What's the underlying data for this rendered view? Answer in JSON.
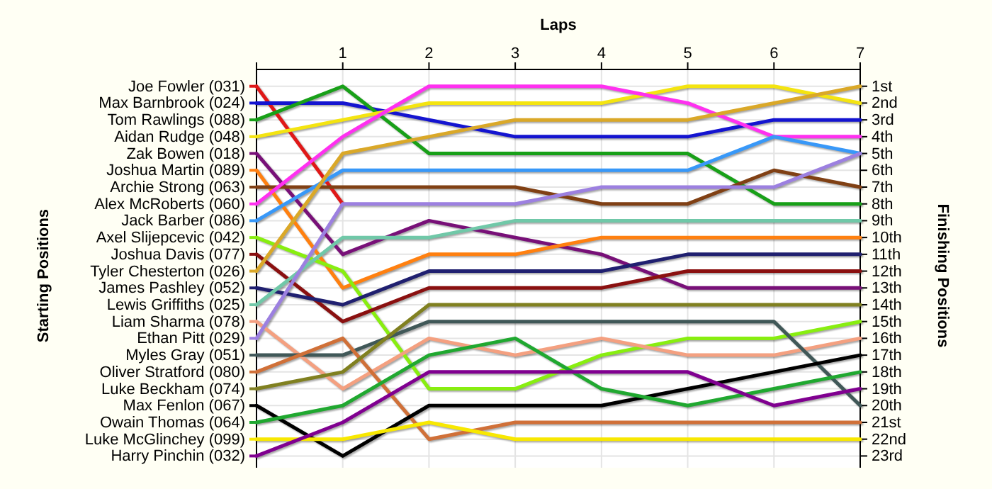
{
  "chart_data": {
    "type": "line",
    "xlabel": "Laps",
    "ylabel": "Finishing Positions",
    "annotations": [
      "Starting Positions"
    ],
    "legend": "left",
    "x": [
      0,
      1,
      2,
      3,
      4,
      5,
      6,
      7
    ],
    "xlim": [
      0,
      7
    ],
    "xticks": [
      {
        "value": 0,
        "label": null
      },
      1,
      2,
      3,
      4,
      5,
      6,
      7
    ],
    "ylim": [
      23.7,
      0
    ],
    "yticks": [
      {
        "value": 1,
        "label": "1st"
      },
      {
        "value": 2,
        "label": "2nd"
      },
      {
        "value": 3,
        "label": "3rd"
      },
      {
        "value": 4,
        "label": "4th"
      },
      {
        "value": 5,
        "label": "5th"
      },
      {
        "value": 6,
        "label": "6th"
      },
      {
        "value": 7,
        "label": "7th"
      },
      {
        "value": 8,
        "label": "8th"
      },
      {
        "value": 9,
        "label": "9th"
      },
      {
        "value": 10,
        "label": "10th"
      },
      {
        "value": 11,
        "label": "11th"
      },
      {
        "value": 12,
        "label": "12th"
      },
      {
        "value": 13,
        "label": "13th"
      },
      {
        "value": 14,
        "label": "14th"
      },
      {
        "value": 15,
        "label": "15th"
      },
      {
        "value": 16,
        "label": "16th"
      },
      {
        "value": 17,
        "label": "17th"
      },
      {
        "value": 18,
        "label": "18th"
      },
      {
        "value": 19,
        "label": "19th"
      },
      {
        "value": 20,
        "label": "20th"
      },
      {
        "value": 21,
        "label": "21st"
      },
      {
        "value": 22,
        "label": "22nd"
      },
      {
        "value": 23,
        "label": "23rd"
      }
    ],
    "grid": true,
    "marker": "none",
    "line_style": "solid",
    "series": [
      {
        "name": "Joe Fowler (031)",
        "color": "#e01818",
        "values": [
          1,
          8,
          null,
          null,
          null,
          null,
          null,
          null
        ]
      },
      {
        "name": "Max Barnbrook (024)",
        "color": "#1414d0",
        "values": [
          2,
          2,
          3,
          4,
          4,
          4,
          3,
          3
        ]
      },
      {
        "name": "Tom Rawlings (088)",
        "color": "#18a018",
        "values": [
          3,
          1,
          5,
          5,
          5,
          5,
          8,
          8
        ]
      },
      {
        "name": "Aidan Rudge (048)",
        "color": "#f4e410",
        "values": [
          4,
          3,
          2,
          2,
          2,
          1,
          1,
          2
        ]
      },
      {
        "name": "Zak Bowen (018)",
        "color": "#781078",
        "values": [
          5,
          11,
          9,
          10,
          11,
          13,
          13,
          13
        ]
      },
      {
        "name": "Joshua Martin (089)",
        "color": "#ff8010",
        "values": [
          6,
          13,
          11,
          11,
          10,
          10,
          10,
          10
        ]
      },
      {
        "name": "Archie Strong (063)",
        "color": "#804014",
        "values": [
          7,
          7,
          7,
          7,
          8,
          8,
          6,
          7
        ]
      },
      {
        "name": "Alex McRoberts (060)",
        "color": "#ff30f0",
        "values": [
          8,
          4,
          1,
          1,
          1,
          2,
          4,
          4
        ]
      },
      {
        "name": "Jack Barber (086)",
        "color": "#3898f8",
        "values": [
          9,
          6,
          6,
          6,
          6,
          6,
          4,
          5
        ]
      },
      {
        "name": "Axel Slijepcevic (042)",
        "color": "#88ee10",
        "values": [
          10,
          12,
          19,
          19,
          17,
          16,
          16,
          15
        ]
      },
      {
        "name": "Joshua Davis (077)",
        "color": "#8a1010",
        "values": [
          11,
          15,
          13,
          13,
          13,
          12,
          12,
          12
        ]
      },
      {
        "name": "Tyler Chesterton (026)",
        "color": "#daa828",
        "values": [
          12,
          5,
          4,
          3,
          3,
          3,
          2,
          1
        ]
      },
      {
        "name": "James Pashley (052)",
        "color": "#202070",
        "values": [
          13,
          14,
          12,
          12,
          12,
          11,
          11,
          11
        ]
      },
      {
        "name": "Lewis Griffiths (025)",
        "color": "#70c8a8",
        "values": [
          14,
          10,
          10,
          9,
          9,
          9,
          9,
          9
        ]
      },
      {
        "name": "Liam Sharma (078)",
        "color": "#f4a080",
        "values": [
          15,
          19,
          16,
          17,
          16,
          17,
          17,
          16
        ]
      },
      {
        "name": "Ethan Pitt (029)",
        "color": "#9c80e0",
        "values": [
          16,
          8,
          8,
          8,
          7,
          7,
          7,
          5
        ]
      },
      {
        "name": "Myles Gray (051)",
        "color": "#405858",
        "values": [
          17,
          17,
          15,
          15,
          15,
          15,
          15,
          20
        ]
      },
      {
        "name": "Oliver Stratford (080)",
        "color": "#d07038",
        "values": [
          18,
          16,
          22,
          21,
          21,
          21,
          21,
          21
        ]
      },
      {
        "name": "Luke Beckham (074)",
        "color": "#808020",
        "values": [
          19,
          18,
          14,
          14,
          14,
          14,
          14,
          14
        ]
      },
      {
        "name": "Max Fenlon (067)",
        "color": "#000000",
        "values": [
          20,
          23,
          20,
          20,
          20,
          19,
          18,
          17
        ]
      },
      {
        "name": "Owain Thomas (064)",
        "color": "#20a830",
        "values": [
          21,
          20,
          17,
          16,
          19,
          20,
          19,
          18
        ]
      },
      {
        "name": "Luke McGlinchey (099)",
        "color": "#f8e800",
        "values": [
          22,
          22,
          21,
          22,
          22,
          22,
          22,
          22
        ]
      },
      {
        "name": "Harry Pinchin (032)",
        "color": "#800090",
        "values": [
          23,
          21,
          18,
          18,
          18,
          18,
          20,
          19
        ]
      }
    ]
  }
}
